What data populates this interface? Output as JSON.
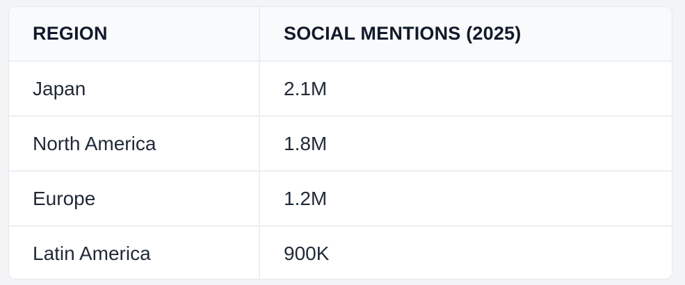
{
  "table": {
    "headers": [
      "REGION",
      "SOCIAL MENTIONS (2025)"
    ],
    "rows": [
      [
        "Japan",
        "2.1M"
      ],
      [
        "North America",
        "1.8M"
      ],
      [
        "Europe",
        "1.2M"
      ],
      [
        "Latin America",
        "900K"
      ]
    ]
  }
}
